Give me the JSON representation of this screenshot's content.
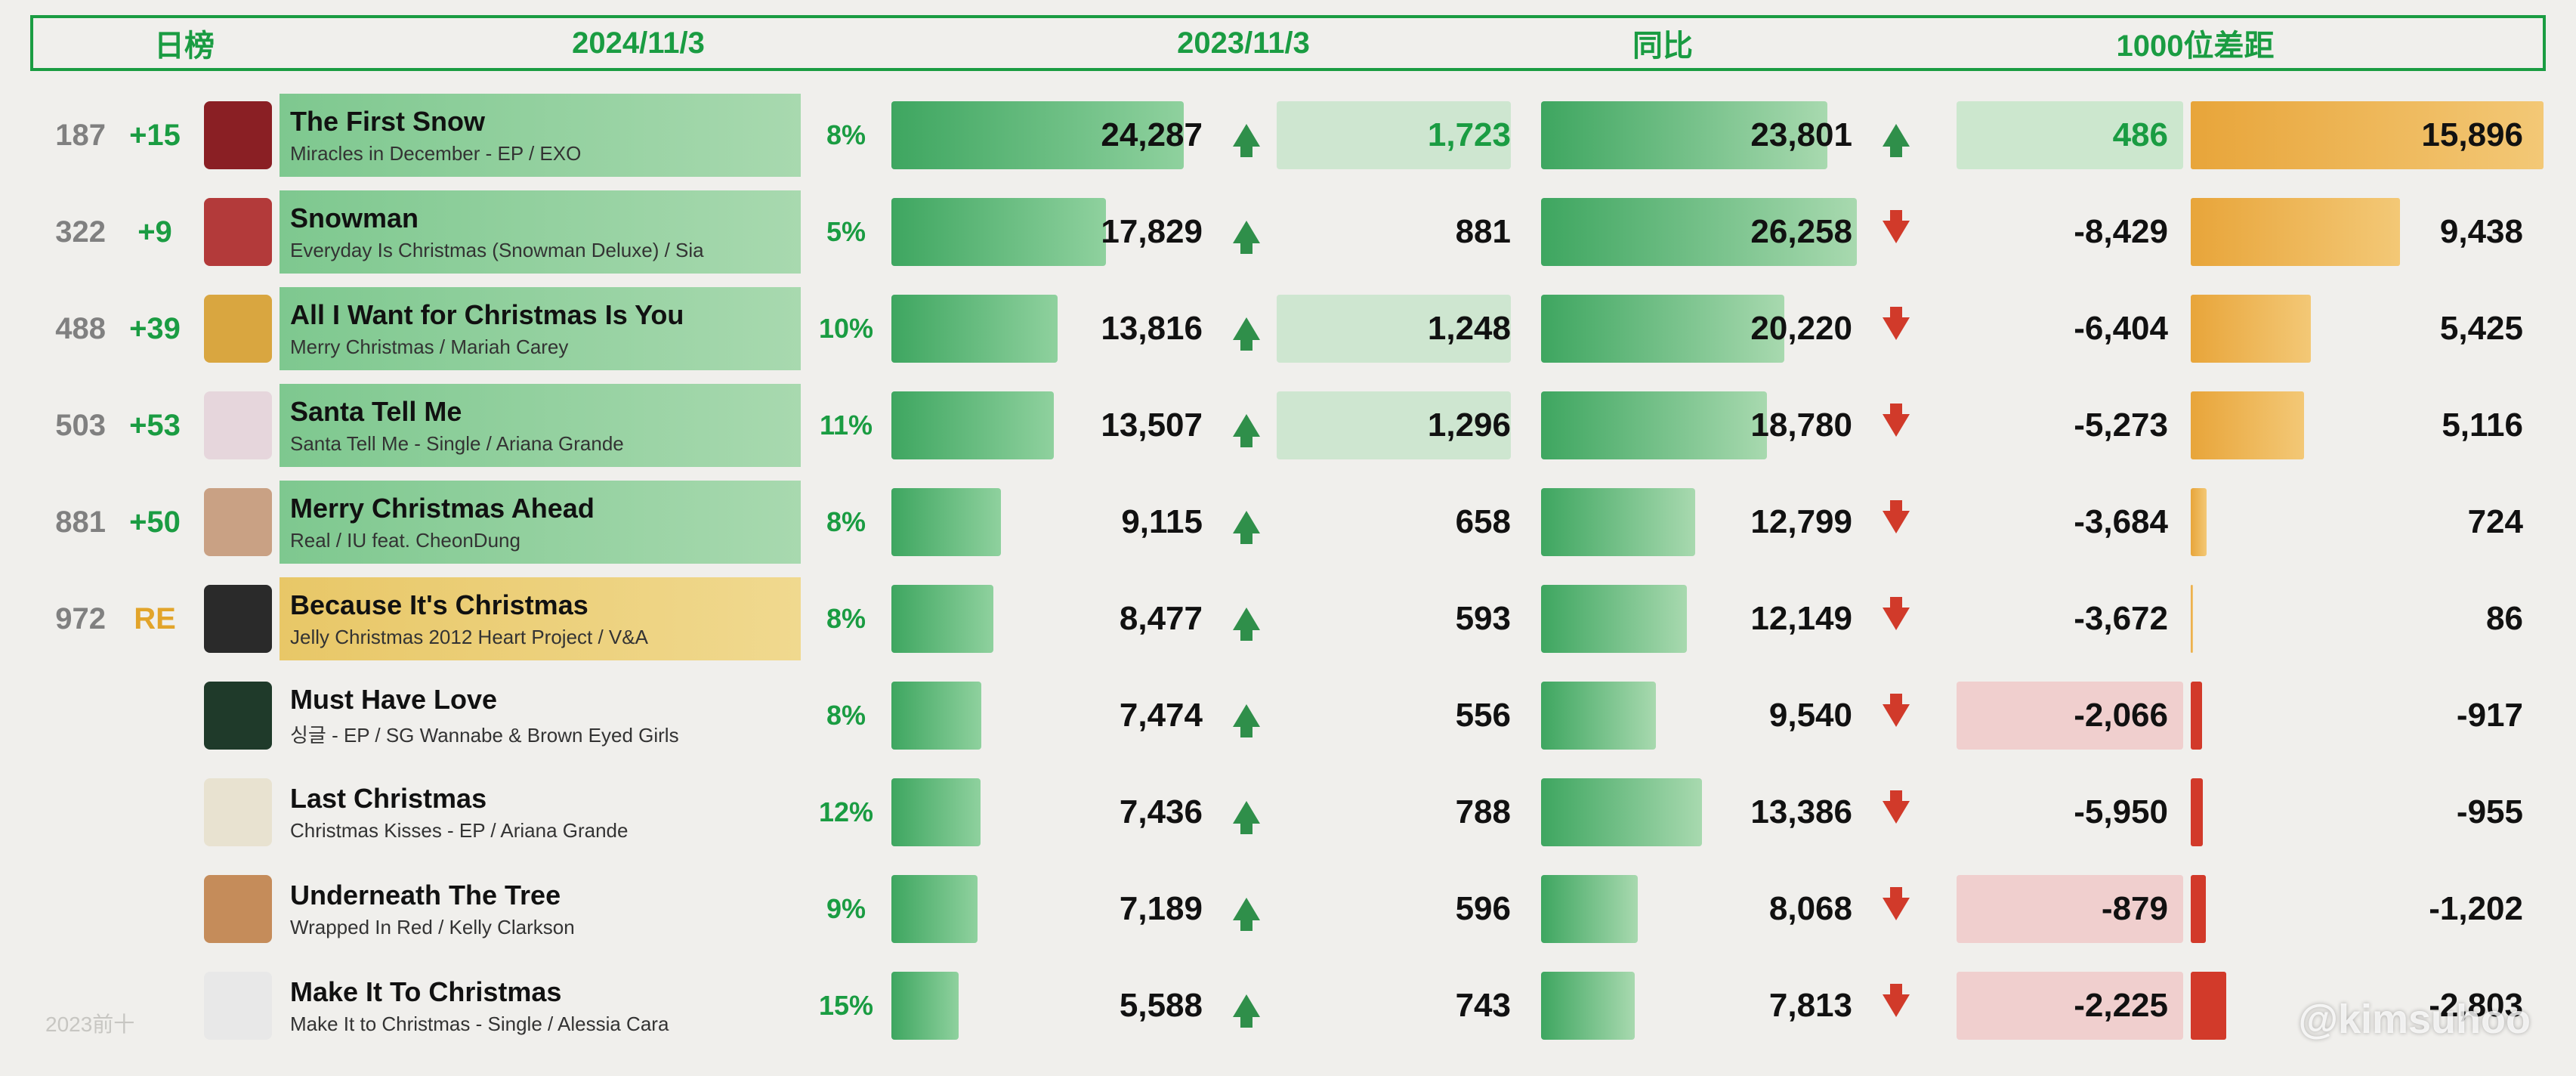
{
  "header": {
    "rank_label": "日榜",
    "date_current": "2024/11/3",
    "date_prev": "2023/11/3",
    "yoy_label": "同比",
    "gap_label": "1000位差距",
    "border_color": "#1a9c42",
    "text_color": "#1a9c42"
  },
  "scales": {
    "bar1_max": 27000,
    "bar2_max": 27000,
    "gap_max": 16000,
    "gap_neg_max": 3000
  },
  "colors": {
    "bar_green_from": "#3ea660",
    "bar_green_to": "#a8d9af",
    "gap_pos_from": "#e8a53a",
    "gap_pos_to": "#f3c876",
    "gap_neg": "#d23a2a",
    "arrow_up": "#2f8f4a",
    "arrow_down": "#d13a2a",
    "rank_text": "#808080",
    "change_up": "#1a9c42",
    "change_re": "#e2a42a",
    "pct": "#1a9c42",
    "background": "#f0efec",
    "row_hl_green_from": "#7ec88f",
    "row_hl_green_to": "#a8d9af",
    "row_hl_yellow_from": "#e8c767",
    "row_hl_yellow_to": "#f0d98f"
  },
  "watermark": "@kimsuhoo",
  "footer_dim": "2023前十",
  "rows": [
    {
      "rank": "187",
      "change": "+15",
      "change_style": "up",
      "art_color": "#8a1f24",
      "title": "The First Snow",
      "subtitle": "Miracles in December - EP / EXO",
      "title_hl": "green",
      "pct": "8%",
      "val_2024": 24287,
      "val_2024_str": "24,287",
      "delta": 1723,
      "delta_str": "1,723",
      "delta_arrow": "up",
      "delta_color": "green",
      "delta_hl": true,
      "val_2023": 23801,
      "val_2023_str": "23,801",
      "yoy_arrow": "up",
      "yoy": 486,
      "yoy_str": "486",
      "yoy_hl": "green",
      "yoy_color": "green",
      "gap": 15896,
      "gap_str": "15,896"
    },
    {
      "rank": "322",
      "change": "+9",
      "change_style": "up",
      "art_color": "#b33a3a",
      "title": "Snowman",
      "subtitle": "Everyday Is Christmas (Snowman Deluxe) / Sia",
      "title_hl": "green",
      "pct": "5%",
      "val_2024": 17829,
      "val_2024_str": "17,829",
      "delta": 881,
      "delta_str": "881",
      "delta_arrow": "up",
      "delta_color": "black",
      "delta_hl": false,
      "val_2023": 26258,
      "val_2023_str": "26,258",
      "yoy_arrow": "down",
      "yoy": -8429,
      "yoy_str": "-8,429",
      "yoy_hl": "none",
      "yoy_color": "black",
      "gap": 9438,
      "gap_str": "9,438"
    },
    {
      "rank": "488",
      "change": "+39",
      "change_style": "up",
      "art_color": "#d9a640",
      "title": "All I Want for Christmas Is You",
      "subtitle": "Merry Christmas / Mariah Carey",
      "title_hl": "green",
      "pct": "10%",
      "val_2024": 13816,
      "val_2024_str": "13,816",
      "delta": 1248,
      "delta_str": "1,248",
      "delta_arrow": "up",
      "delta_color": "black",
      "delta_hl": true,
      "val_2023": 20220,
      "val_2023_str": "20,220",
      "yoy_arrow": "down",
      "yoy": -6404,
      "yoy_str": "-6,404",
      "yoy_hl": "none",
      "yoy_color": "black",
      "gap": 5425,
      "gap_str": "5,425"
    },
    {
      "rank": "503",
      "change": "+53",
      "change_style": "up",
      "art_color": "#e6d6dc",
      "title": "Santa Tell Me",
      "subtitle": "Santa Tell Me - Single / Ariana Grande",
      "title_hl": "green",
      "pct": "11%",
      "val_2024": 13507,
      "val_2024_str": "13,507",
      "delta": 1296,
      "delta_str": "1,296",
      "delta_arrow": "up",
      "delta_color": "black",
      "delta_hl": true,
      "val_2023": 18780,
      "val_2023_str": "18,780",
      "yoy_arrow": "down",
      "yoy": -5273,
      "yoy_str": "-5,273",
      "yoy_hl": "none",
      "yoy_color": "black",
      "gap": 5116,
      "gap_str": "5,116"
    },
    {
      "rank": "881",
      "change": "+50",
      "change_style": "up",
      "art_color": "#c9a184",
      "title": "Merry Christmas Ahead",
      "subtitle": "Real / IU feat. CheonDung",
      "title_hl": "green",
      "pct": "8%",
      "val_2024": 9115,
      "val_2024_str": "9,115",
      "delta": 658,
      "delta_str": "658",
      "delta_arrow": "up",
      "delta_color": "black",
      "delta_hl": false,
      "val_2023": 12799,
      "val_2023_str": "12,799",
      "yoy_arrow": "down",
      "yoy": -3684,
      "yoy_str": "-3,684",
      "yoy_hl": "none",
      "yoy_color": "black",
      "gap": 724,
      "gap_str": "724"
    },
    {
      "rank": "972",
      "change": "RE",
      "change_style": "re",
      "art_color": "#2a2a2a",
      "title": "Because It's Christmas",
      "subtitle": "Jelly Christmas 2012 Heart Project  / V&A",
      "title_hl": "yellow",
      "pct": "8%",
      "val_2024": 8477,
      "val_2024_str": "8,477",
      "delta": 593,
      "delta_str": "593",
      "delta_arrow": "up",
      "delta_color": "black",
      "delta_hl": false,
      "val_2023": 12149,
      "val_2023_str": "12,149",
      "yoy_arrow": "down",
      "yoy": -3672,
      "yoy_str": "-3,672",
      "yoy_hl": "none",
      "yoy_color": "black",
      "gap": 86,
      "gap_str": "86"
    },
    {
      "rank": "",
      "change": "",
      "change_style": "up",
      "art_color": "#1f3a2a",
      "title": "Must Have Love",
      "subtitle": "싱글 - EP / SG Wannabe & Brown Eyed Girls",
      "title_hl": "none",
      "pct": "8%",
      "val_2024": 7474,
      "val_2024_str": "7,474",
      "delta": 556,
      "delta_str": "556",
      "delta_arrow": "up",
      "delta_color": "black",
      "delta_hl": false,
      "val_2023": 9540,
      "val_2023_str": "9,540",
      "yoy_arrow": "down",
      "yoy": -2066,
      "yoy_str": "-2,066",
      "yoy_hl": "red",
      "yoy_color": "black",
      "gap": -917,
      "gap_str": "-917"
    },
    {
      "rank": "",
      "change": "",
      "change_style": "up",
      "art_color": "#e8e2d0",
      "title": "Last Christmas",
      "subtitle": "Christmas Kisses - EP / Ariana Grande",
      "title_hl": "none",
      "pct": "12%",
      "val_2024": 7436,
      "val_2024_str": "7,436",
      "delta": 788,
      "delta_str": "788",
      "delta_arrow": "up",
      "delta_color": "black",
      "delta_hl": false,
      "val_2023": 13386,
      "val_2023_str": "13,386",
      "yoy_arrow": "down",
      "yoy": -5950,
      "yoy_str": "-5,950",
      "yoy_hl": "none",
      "yoy_color": "black",
      "gap": -955,
      "gap_str": "-955"
    },
    {
      "rank": "",
      "change": "",
      "change_style": "up",
      "art_color": "#c58c5a",
      "title": "Underneath The Tree",
      "subtitle": "Wrapped In Red / Kelly Clarkson",
      "title_hl": "none",
      "pct": "9%",
      "val_2024": 7189,
      "val_2024_str": "7,189",
      "delta": 596,
      "delta_str": "596",
      "delta_arrow": "up",
      "delta_color": "black",
      "delta_hl": false,
      "val_2023": 8068,
      "val_2023_str": "8,068",
      "yoy_arrow": "down",
      "yoy": -879,
      "yoy_str": "-879",
      "yoy_hl": "red",
      "yoy_color": "black",
      "gap": -1202,
      "gap_str": "-1,202"
    },
    {
      "rank": "",
      "change": "",
      "change_style": "up",
      "art_color": "#e8e8e8",
      "title": "Make It To Christmas",
      "subtitle": "Make It to Christmas - Single / Alessia Cara",
      "title_hl": "none",
      "pct": "15%",
      "val_2024": 5588,
      "val_2024_str": "5,588",
      "delta": 743,
      "delta_str": "743",
      "delta_arrow": "up",
      "delta_color": "black",
      "delta_hl": false,
      "val_2023": 7813,
      "val_2023_str": "7,813",
      "yoy_arrow": "down",
      "yoy": -2225,
      "yoy_str": "-2,225",
      "yoy_hl": "red",
      "yoy_color": "black",
      "gap": -2803,
      "gap_str": "-2,803"
    }
  ]
}
